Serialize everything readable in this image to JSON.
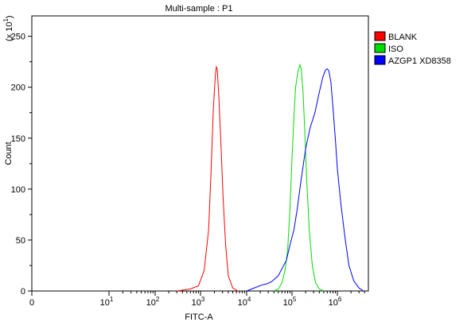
{
  "chart_data": {
    "type": "line",
    "title": "Multi-sample : P1",
    "xlabel": "FITC-A",
    "ylabel": "Count",
    "y_multiplier_label": "(x 10",
    "y_multiplier_exp": "1",
    "x_scale": "biexponential",
    "xlim": [
      0,
      4500000
    ],
    "ylim": [
      0,
      270
    ],
    "x_ticks": [
      {
        "value": 0,
        "base": "0",
        "exp": ""
      },
      {
        "value": 10,
        "base": "10",
        "exp": "1"
      },
      {
        "value": 100,
        "base": "10",
        "exp": "2"
      },
      {
        "value": 1000,
        "base": "10",
        "exp": "3"
      },
      {
        "value": 10000,
        "base": "10",
        "exp": "4"
      },
      {
        "value": 100000,
        "base": "10",
        "exp": "5"
      },
      {
        "value": 1000000,
        "base": "10",
        "exp": "6"
      }
    ],
    "y_ticks": [
      "0",
      "50",
      "100",
      "150",
      "200",
      "250"
    ],
    "legend_position": "top-right",
    "series": [
      {
        "name": "BLANK",
        "color": "#ff0000",
        "points": [
          [
            300,
            0
          ],
          [
            600,
            2
          ],
          [
            900,
            5
          ],
          [
            1200,
            20
          ],
          [
            1500,
            60
          ],
          [
            1700,
            120
          ],
          [
            1900,
            180
          ],
          [
            2100,
            212
          ],
          [
            2200,
            220
          ],
          [
            2300,
            218
          ],
          [
            2500,
            190
          ],
          [
            2800,
            140
          ],
          [
            3100,
            90
          ],
          [
            3500,
            45
          ],
          [
            4000,
            15
          ],
          [
            5000,
            3
          ],
          [
            6500,
            0
          ]
        ]
      },
      {
        "name": "ISO",
        "color": "#00dd00",
        "points": [
          [
            40000,
            0
          ],
          [
            50000,
            2
          ],
          [
            60000,
            8
          ],
          [
            70000,
            20
          ],
          [
            80000,
            40
          ],
          [
            90000,
            80
          ],
          [
            100000,
            130
          ],
          [
            110000,
            170
          ],
          [
            120000,
            200
          ],
          [
            135000,
            215
          ],
          [
            150000,
            222
          ],
          [
            160000,
            218
          ],
          [
            175000,
            195
          ],
          [
            190000,
            160
          ],
          [
            210000,
            110
          ],
          [
            240000,
            60
          ],
          [
            280000,
            25
          ],
          [
            330000,
            8
          ],
          [
            400000,
            2
          ],
          [
            500000,
            0
          ]
        ]
      },
      {
        "name": "AZGP1 XD8358",
        "color": "#0000ff",
        "points": [
          [
            10000,
            0
          ],
          [
            13000,
            2
          ],
          [
            17000,
            4
          ],
          [
            22000,
            6
          ],
          [
            28000,
            7
          ],
          [
            35000,
            9
          ],
          [
            42000,
            12
          ],
          [
            50000,
            15
          ],
          [
            60000,
            22
          ],
          [
            75000,
            30
          ],
          [
            90000,
            45
          ],
          [
            110000,
            60
          ],
          [
            130000,
            80
          ],
          [
            160000,
            110
          ],
          [
            200000,
            140
          ],
          [
            250000,
            160
          ],
          [
            320000,
            175
          ],
          [
            400000,
            195
          ],
          [
            480000,
            210
          ],
          [
            550000,
            217
          ],
          [
            600000,
            218
          ],
          [
            650000,
            216
          ],
          [
            720000,
            205
          ],
          [
            800000,
            180
          ],
          [
            900000,
            150
          ],
          [
            1000000,
            120
          ],
          [
            1200000,
            85
          ],
          [
            1500000,
            50
          ],
          [
            1800000,
            25
          ],
          [
            2300000,
            10
          ],
          [
            3000000,
            3
          ],
          [
            3800000,
            0
          ]
        ]
      }
    ]
  }
}
